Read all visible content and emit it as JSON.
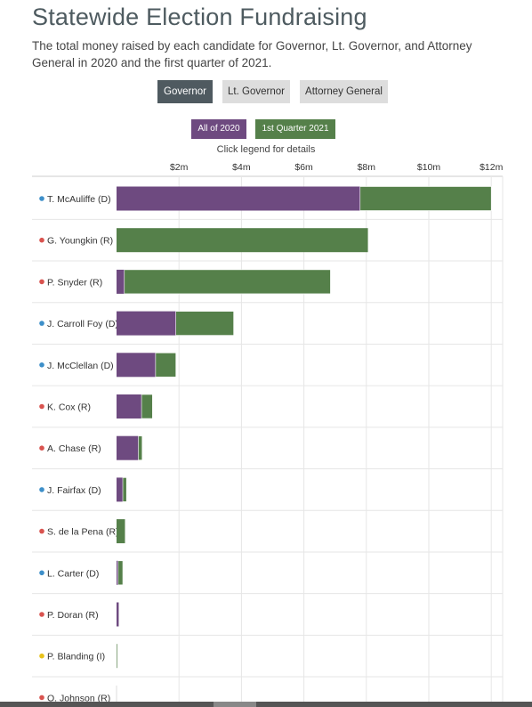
{
  "header": {
    "title": "Statewide Election Fundraising",
    "subtitle": "The total money raised by each candidate for Governor, Lt. Governor, and Attorney General in 2020 and the first quarter of 2021."
  },
  "tabs": [
    {
      "label": "Governor",
      "active": true
    },
    {
      "label": "Lt. Governor",
      "active": false
    },
    {
      "label": "Attorney General",
      "active": false
    }
  ],
  "legend": {
    "items": [
      {
        "label": "All of 2020",
        "color": "#6e4a80"
      },
      {
        "label": "1st Quarter 2021",
        "color": "#55804a"
      }
    ],
    "hint": "Click legend for details"
  },
  "colors": {
    "D": "#3d8fc9",
    "R": "#d9534f",
    "I": "#e8c21a"
  },
  "chart_data": {
    "type": "bar",
    "orientation": "horizontal",
    "stacked": true,
    "xlim": [
      0,
      12
    ],
    "x_ticks": [
      "$2m",
      "$4m",
      "$6m",
      "$8m",
      "$10m",
      "$12m"
    ],
    "grid": true,
    "legend_position": "top-center",
    "categories": [
      {
        "label": "T. McAuliffe (D)",
        "party": "D"
      },
      {
        "label": "G. Youngkin (R)",
        "party": "R"
      },
      {
        "label": "P. Snyder (R)",
        "party": "R"
      },
      {
        "label": "J. Carroll Foy (D)",
        "party": "D"
      },
      {
        "label": "J. McClellan (D)",
        "party": "D"
      },
      {
        "label": "K. Cox (R)",
        "party": "R"
      },
      {
        "label": "A. Chase (R)",
        "party": "R"
      },
      {
        "label": "J. Fairfax (D)",
        "party": "D"
      },
      {
        "label": "S. de la Pena (R)",
        "party": "R"
      },
      {
        "label": "L. Carter (D)",
        "party": "D"
      },
      {
        "label": "P. Doran (R)",
        "party": "R"
      },
      {
        "label": "P. Blanding (I)",
        "party": "I"
      },
      {
        "label": "O. Johnson (R)",
        "party": "R"
      }
    ],
    "series": [
      {
        "name": "All of 2020",
        "values": [
          7.8,
          0.0,
          0.25,
          1.9,
          1.25,
          0.8,
          0.7,
          0.2,
          0.0,
          0.05,
          0.07,
          0.0,
          0.0
        ]
      },
      {
        "name": "1st Quarter 2021",
        "values": [
          4.2,
          8.05,
          6.6,
          1.85,
          0.65,
          0.35,
          0.12,
          0.12,
          0.27,
          0.15,
          0.0,
          0.02,
          0.0
        ]
      }
    ]
  }
}
